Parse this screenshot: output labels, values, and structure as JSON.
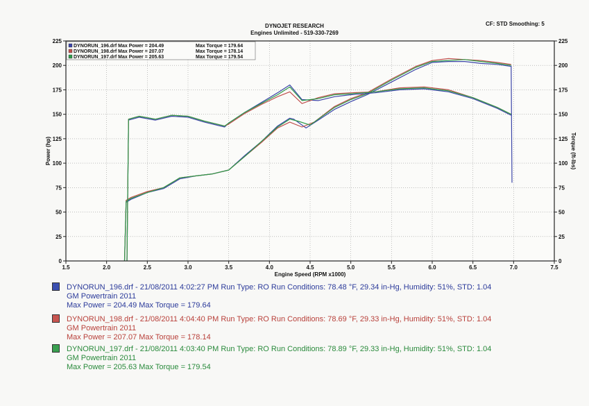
{
  "header": {
    "title": "DYNOJET RESEARCH",
    "subtitle": "Engines Unlimited - 519-330-7269",
    "cf_smoothing": "CF: STD  Smoothing: 5"
  },
  "legend_box": [
    {
      "file": "DYNORUN_196.drf",
      "max_power": "Max Power = 204.49",
      "max_torque": "Max Torque = 179.64",
      "color": "#3b45a8"
    },
    {
      "file": "DYNORUN_198.drf",
      "max_power": "Max Power = 207.07",
      "max_torque": "Max Torque = 178.14",
      "color": "#c0504d"
    },
    {
      "file": "DYNORUN_197.drf",
      "max_power": "Max Power = 205.63",
      "max_torque": "Max Torque = 179.54",
      "color": "#2e9a4a"
    }
  ],
  "runs": [
    {
      "line1": "DYNORUN_196.drf - 21/08/2011 4:02:27 PM  Run Type: RO  Run Conditions: 78.48 °F, 29.34 in-Hg,  Humidity:  51%, STD: 1.04",
      "line2": "GM Powertrain 2011",
      "line3": "Max Power = 204.49  Max Torque = 179.64",
      "color": "#2b3a9a"
    },
    {
      "line1": "DYNORUN_198.drf - 21/08/2011 4:04:40 PM  Run Type: RO  Run Conditions: 78.69 °F, 29.33 in-Hg,  Humidity:  51%, STD: 1.04",
      "line2": "GM Powertrain 2011",
      "line3": "Max Power = 207.07  Max Torque = 178.14",
      "color": "#b8403a"
    },
    {
      "line1": "DYNORUN_197.drf - 21/08/2011 4:03:40 PM  Run Type: RO  Run Conditions: 78.89 °F, 29.33 in-Hg,  Humidity:  51%, STD: 1.04",
      "line2": "GM Powertrain 2011",
      "line3": "Max Power = 205.63  Max Torque = 179.54",
      "color": "#2a8a3c"
    }
  ],
  "chart_data": {
    "type": "line",
    "xlabel": "Engine Speed (RPM x1000)",
    "ylabel": "Power (hp)",
    "y2label": "Torque (ft-lbs)",
    "xlim": [
      1.5,
      7.5
    ],
    "ylim": [
      0,
      225
    ],
    "y2lim": [
      0,
      225
    ],
    "x_ticks": [
      "1.5",
      "2.0",
      "2.5",
      "3.0",
      "3.5",
      "4.0",
      "4.5",
      "5.0",
      "5.5",
      "6.0",
      "6.5",
      "7.0",
      "7.5"
    ],
    "y_ticks": [
      "0",
      "25",
      "50",
      "75",
      "100",
      "125",
      "150",
      "175",
      "200",
      "225"
    ],
    "y2_ticks": [
      "0",
      "25",
      "50",
      "75",
      "100",
      "125",
      "150",
      "175",
      "200",
      "225"
    ],
    "grid": true,
    "series": [
      {
        "name": "DYNORUN_196.drf",
        "kind": "power",
        "color": "#3b45a8",
        "x": [
          2.22,
          2.24,
          2.3,
          2.5,
          2.7,
          2.9,
          3.1,
          3.3,
          3.5,
          3.7,
          3.9,
          4.1,
          4.25,
          4.3,
          4.45,
          4.6,
          4.8,
          5.0,
          5.2,
          5.5,
          5.8,
          6.0,
          6.2,
          6.4,
          6.6,
          6.8,
          6.97,
          6.98
        ],
        "y": [
          0,
          60,
          63,
          70,
          74,
          84,
          87,
          89,
          93,
          108,
          122,
          138,
          146,
          145,
          136,
          144,
          155,
          163,
          170,
          183,
          196,
          203,
          204,
          204,
          202,
          201,
          199,
          80
        ]
      },
      {
        "name": "DYNORUN_198.drf",
        "kind": "power",
        "color": "#c0504d",
        "x": [
          2.22,
          2.24,
          2.3,
          2.5,
          2.7,
          2.9,
          3.1,
          3.3,
          3.5,
          3.7,
          3.9,
          4.1,
          4.25,
          4.4,
          4.55,
          4.8,
          5.0,
          5.2,
          5.5,
          5.8,
          6.0,
          6.2,
          6.4,
          6.6,
          6.8,
          6.97
        ],
        "y": [
          0,
          62,
          65,
          71,
          75,
          85,
          87,
          89,
          93,
          107,
          121,
          136,
          142,
          137,
          142,
          158,
          166,
          172,
          186,
          199,
          205,
          207,
          206,
          205,
          203,
          201
        ]
      },
      {
        "name": "DYNORUN_197.drf",
        "kind": "power",
        "color": "#2e9a4a",
        "x": [
          2.22,
          2.24,
          2.3,
          2.5,
          2.7,
          2.9,
          3.1,
          3.3,
          3.5,
          3.7,
          3.9,
          4.1,
          4.25,
          4.35,
          4.5,
          4.8,
          5.0,
          5.2,
          5.5,
          5.8,
          6.0,
          6.2,
          6.4,
          6.6,
          6.8,
          6.97
        ],
        "y": [
          0,
          61,
          64,
          70,
          75,
          85,
          87,
          89,
          93,
          107,
          122,
          137,
          145,
          143,
          139,
          157,
          165,
          171,
          185,
          198,
          204,
          205,
          206,
          204,
          202,
          200
        ]
      },
      {
        "name": "DYNORUN_196.drf",
        "kind": "torque",
        "color": "#3b45a8",
        "x": [
          2.25,
          2.27,
          2.4,
          2.6,
          2.8,
          3.0,
          3.2,
          3.45,
          3.5,
          3.7,
          3.9,
          4.1,
          4.25,
          4.4,
          4.6,
          4.8,
          5.0,
          5.3,
          5.6,
          5.9,
          6.2,
          6.5,
          6.8,
          6.97
        ],
        "y": [
          0,
          144,
          147,
          144,
          148,
          147,
          142,
          137,
          141,
          152,
          162,
          172,
          180,
          165,
          164,
          168,
          170,
          172,
          175,
          176,
          173,
          166,
          156,
          149
        ]
      },
      {
        "name": "DYNORUN_198.drf",
        "kind": "torque",
        "color": "#c0504d",
        "x": [
          2.25,
          2.27,
          2.4,
          2.6,
          2.8,
          3.0,
          3.2,
          3.45,
          3.5,
          3.7,
          3.9,
          4.1,
          4.25,
          4.4,
          4.6,
          4.8,
          5.0,
          5.3,
          5.6,
          5.9,
          6.2,
          6.5,
          6.8,
          6.97
        ],
        "y": [
          0,
          145,
          148,
          145,
          149,
          148,
          143,
          138,
          140,
          151,
          160,
          168,
          173,
          161,
          167,
          171,
          172,
          173,
          177,
          178,
          175,
          167,
          157,
          150
        ]
      },
      {
        "name": "DYNORUN_197.drf",
        "kind": "torque",
        "color": "#2e9a4a",
        "x": [
          2.25,
          2.27,
          2.4,
          2.6,
          2.8,
          3.0,
          3.2,
          3.45,
          3.5,
          3.7,
          3.9,
          4.1,
          4.25,
          4.4,
          4.6,
          4.8,
          5.0,
          5.3,
          5.6,
          5.9,
          6.2,
          6.5,
          6.8,
          6.97
        ],
        "y": [
          0,
          145,
          148,
          145,
          149,
          148,
          143,
          138,
          141,
          152,
          161,
          170,
          178,
          164,
          166,
          170,
          171,
          173,
          176,
          177,
          174,
          167,
          157,
          150
        ]
      }
    ]
  }
}
